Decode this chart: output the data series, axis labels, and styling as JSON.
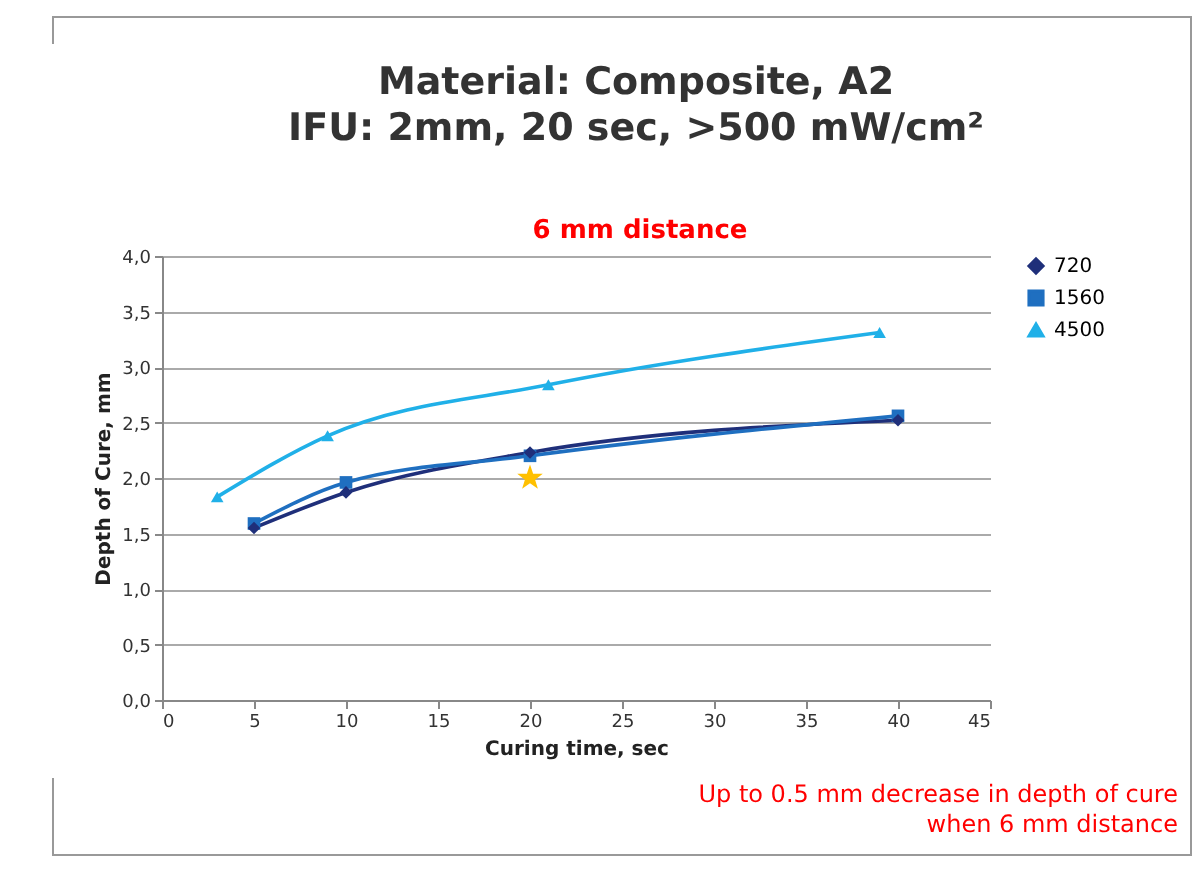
{
  "chart_data": {
    "type": "line",
    "title": "Material: Composite, A2",
    "subtitle": "IFU: 2mm, 20 sec, >500 mW/cm²",
    "xlabel": "Curing time, sec",
    "ylabel": "Depth of Cure, mm",
    "annotations": [
      "6 mm distance",
      "Up to 0.5 mm decrease in depth of cure when 6 mm distance"
    ],
    "series": [
      {
        "name": "720",
        "color": "#1f2f7a",
        "marker": "diamond",
        "x": [
          5,
          10,
          20,
          40
        ],
        "values": [
          1.55,
          1.87,
          2.23,
          2.52
        ]
      },
      {
        "name": "1560",
        "color": "#1f6fc0",
        "marker": "square",
        "x": [
          5,
          10,
          20,
          40
        ],
        "values": [
          1.59,
          1.96,
          2.2,
          2.56
        ]
      },
      {
        "name": "4500",
        "color": "#20b0e8",
        "marker": "triangle",
        "x": [
          3,
          9,
          21,
          39
        ],
        "values": [
          1.83,
          2.38,
          2.84,
          3.31
        ]
      },
      {
        "type": "scatter",
        "color": "#ffc000",
        "marker": "star",
        "x": [
          20
        ],
        "values": [
          2.0
        ]
      }
    ],
    "xlim": [
      0,
      45
    ],
    "xticks": [
      0,
      5,
      10,
      15,
      20,
      25,
      30,
      35,
      40,
      45
    ],
    "ylim": [
      0,
      4
    ],
    "yticks": [
      {
        "value": 0,
        "label": "0,0"
      },
      {
        "value": 0.5,
        "label": "0,5"
      },
      {
        "value": 1,
        "label": "1,0"
      },
      {
        "value": 1.5,
        "label": "1,5"
      },
      {
        "value": 2,
        "label": "2,0"
      },
      {
        "value": 2.5,
        "label": "2,5"
      },
      {
        "value": 3,
        "label": "3,0"
      },
      {
        "value": 3.5,
        "label": "3,5"
      },
      {
        "value": 4,
        "label": "4,0"
      }
    ],
    "grid": "y",
    "legend": "right",
    "line_style": "solid"
  }
}
